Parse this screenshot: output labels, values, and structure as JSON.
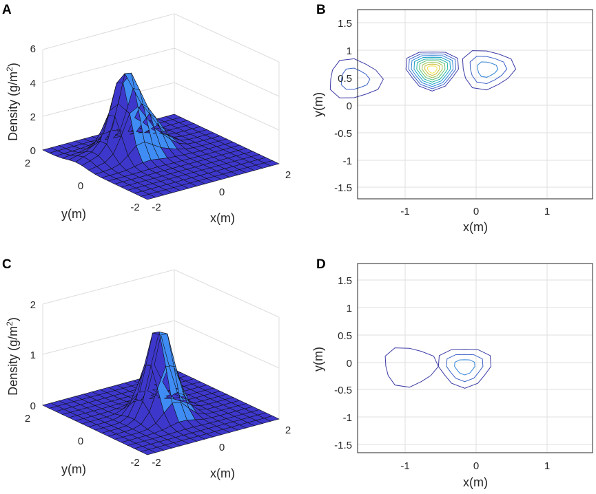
{
  "chart_data": [
    {
      "panel": "A",
      "type": "surface",
      "xlabel": "x(m)",
      "ylabel": "y(m)",
      "zlabel": "Density (g/m",
      "zlabel_sup": "2",
      "zlabel_close": ")",
      "xlim": [
        -2,
        2
      ],
      "ylim": [
        -2,
        2
      ],
      "zlim": [
        0,
        6
      ],
      "xticks": [
        "-2",
        "0",
        "2"
      ],
      "yticks": [
        "-2",
        "0",
        "2"
      ],
      "zticks": [
        "0",
        "2",
        "4",
        "6"
      ],
      "colors": {
        "surface": "#3d37cc",
        "highlight": "#3f8cf5",
        "edge": "#111111"
      },
      "peaks": [
        {
          "x": -0.6,
          "y": 0.6,
          "z": 5.0
        },
        {
          "x": 0.15,
          "y": 0.65,
          "z": 1.8
        },
        {
          "x": -1.6,
          "y": 0.7,
          "z": 0.4
        }
      ]
    },
    {
      "panel": "B",
      "type": "contour",
      "xlabel": "x(m)",
      "ylabel": "y(m)",
      "xlim": [
        -1.7,
        1.7
      ],
      "ylim": [
        -1.7,
        1.7
      ],
      "xticks": [
        "-1",
        "0",
        "1"
      ],
      "yticks": [
        "1.5",
        "1",
        "0.5",
        "0",
        "-0.5",
        "-1",
        "-1.5"
      ],
      "levels": 9,
      "centers": [
        {
          "x": -0.62,
          "y": 0.63,
          "z": 5.0
        },
        {
          "x": 0.17,
          "y": 0.63,
          "z": 1.8
        },
        {
          "x": -1.75,
          "y": 0.45,
          "z": 0.9
        }
      ]
    },
    {
      "panel": "C",
      "type": "surface",
      "xlabel": "x(m)",
      "ylabel": "y(m)",
      "zlabel": "Density (g/m",
      "zlabel_sup": "2",
      "zlabel_close": ")",
      "xlim": [
        -2,
        2
      ],
      "ylim": [
        -2,
        2
      ],
      "zlim": [
        0,
        2
      ],
      "xticks": [
        "-2",
        "0",
        "2"
      ],
      "yticks": [
        "-2",
        "0",
        "2"
      ],
      "zticks": [
        "0",
        "1",
        "2"
      ],
      "colors": {
        "surface": "#3d37cc",
        "highlight": "#3f8cf5",
        "edge": "#111111"
      },
      "peaks": [
        {
          "x": -0.15,
          "y": -0.15,
          "z": 1.85
        }
      ]
    },
    {
      "panel": "D",
      "type": "contour",
      "xlabel": "x(m)",
      "ylabel": "y(m)",
      "xlim": [
        -1.7,
        1.7
      ],
      "ylim": [
        -1.7,
        1.7
      ],
      "xticks": [
        "-1",
        "0",
        "1"
      ],
      "yticks": [
        "1.5",
        "1",
        "0.5",
        "0",
        "-0.5",
        "-1",
        "-1.5"
      ],
      "levels": 9,
      "centers": [
        {
          "x": -0.15,
          "y": -0.15,
          "z": 1.85
        },
        {
          "x": -0.95,
          "y": -0.15,
          "z": 0.25
        }
      ]
    }
  ]
}
